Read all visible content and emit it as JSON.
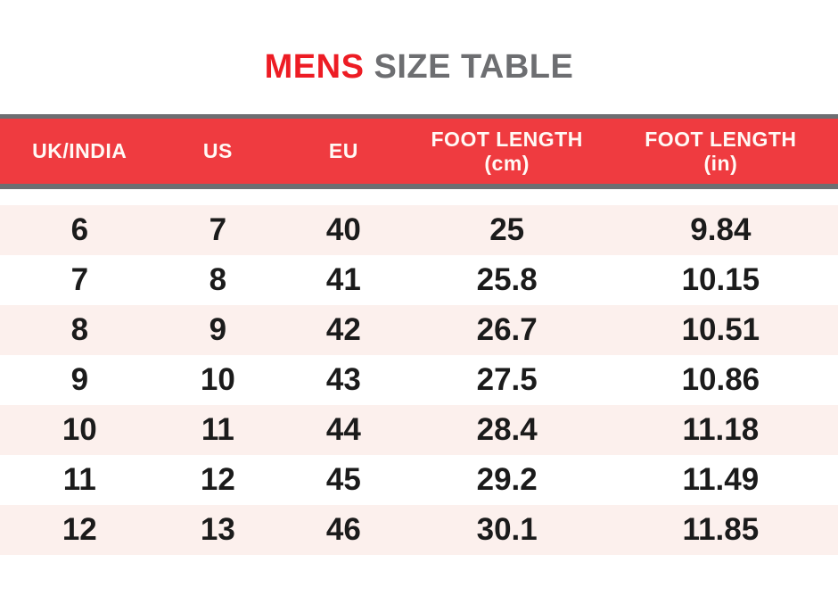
{
  "title": {
    "part1": "MENS",
    "part2": "SIZE TABLE",
    "part1_color": "#ED1C24",
    "part2_color": "#6D6E71"
  },
  "colors": {
    "header_background": "#EF3B40",
    "header_text": "#FFFFFF",
    "band_border_gray": "#6D6E71",
    "row_alternate_pink": "#FCF0ED",
    "row_white": "#FFFFFF",
    "body_text": "#1B1B1B"
  },
  "table": {
    "columns": [
      {
        "label": "UK/INDIA",
        "sublabel": ""
      },
      {
        "label": "US",
        "sublabel": ""
      },
      {
        "label": "EU",
        "sublabel": ""
      },
      {
        "label": "FOOT LENGTH",
        "sublabel": "(cm)"
      },
      {
        "label": "FOOT LENGTH",
        "sublabel": "(in)"
      }
    ],
    "rows": [
      [
        "6",
        "7",
        "40",
        "25",
        "9.84"
      ],
      [
        "7",
        "8",
        "41",
        "25.8",
        "10.15"
      ],
      [
        "8",
        "9",
        "42",
        "26.7",
        "10.51"
      ],
      [
        "9",
        "10",
        "43",
        "27.5",
        "10.86"
      ],
      [
        "10",
        "11",
        "44",
        "28.4",
        "11.18"
      ],
      [
        "11",
        "12",
        "45",
        "29.2",
        "11.49"
      ],
      [
        "12",
        "13",
        "46",
        "30.1",
        "11.85"
      ]
    ]
  },
  "chart_data": {
    "type": "table",
    "title": "MENS SIZE TABLE",
    "columns": [
      "UK/INDIA",
      "US",
      "EU",
      "FOOT LENGTH (cm)",
      "FOOT LENGTH (in)"
    ],
    "rows": [
      [
        6,
        7,
        40,
        25,
        9.84
      ],
      [
        7,
        8,
        41,
        25.8,
        10.15
      ],
      [
        8,
        9,
        42,
        26.7,
        10.51
      ],
      [
        9,
        10,
        43,
        27.5,
        10.86
      ],
      [
        10,
        11,
        44,
        28.4,
        11.18
      ],
      [
        11,
        12,
        45,
        29.2,
        11.49
      ],
      [
        12,
        13,
        46,
        30.1,
        11.85
      ]
    ]
  }
}
